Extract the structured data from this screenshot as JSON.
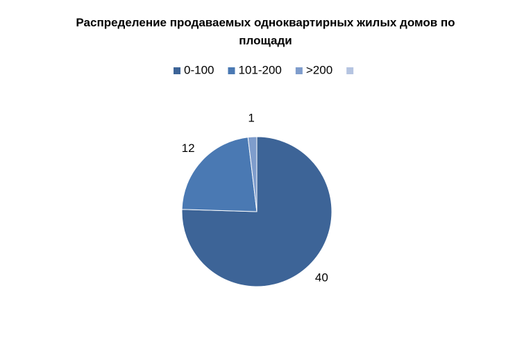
{
  "chart_data": {
    "type": "pie",
    "title": "Распределение продаваемых одноквартирных жилых домов по площади",
    "categories": [
      "0-100",
      "101-200",
      ">200",
      null
    ],
    "values": [
      40,
      12,
      1,
      null
    ],
    "colors": [
      "#3d6497",
      "#4a79b3",
      "#7f9dcc",
      "#b5c4e1"
    ],
    "legend": "top"
  }
}
